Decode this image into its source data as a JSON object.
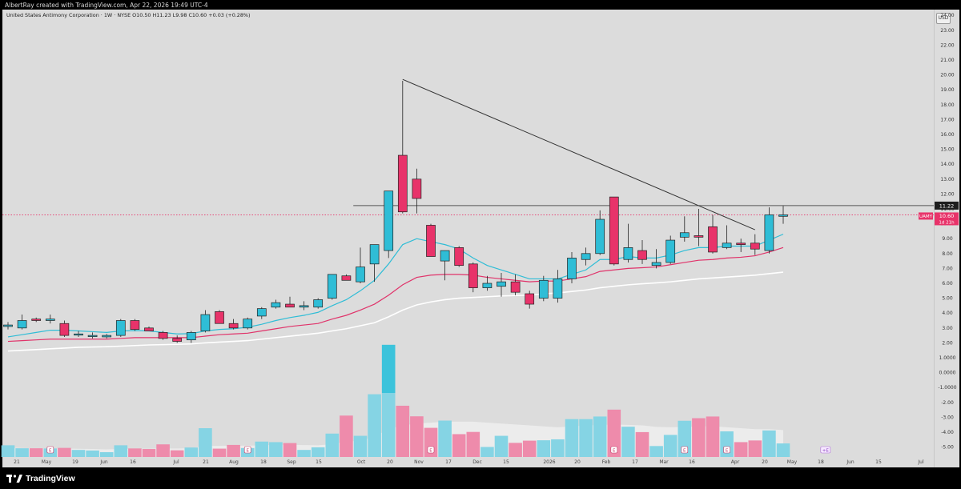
{
  "credit": "AlbertRay created with TradingView.com, Apr 22, 2026 19:49 UTC-4",
  "symbol_title": "United States Antimony Corporation · 1W · NYSE  O10.50  H11.23  L9.98  C10.60  +0.03 (+0.28%)",
  "currency": "USD",
  "brand": "TradingView",
  "colors": {
    "up": "#2fbdd6",
    "down": "#e8336a",
    "ema_fast": "#2fbdd6",
    "ema_mid": "#e0336a",
    "ema_slow": "#ffffff",
    "trend": "#333333"
  },
  "chart_data": {
    "type": "candlestick",
    "interval": "1W",
    "price_ticks": [
      "24.00",
      "23.00",
      "22.00",
      "21.00",
      "20.00",
      "19.00",
      "18.00",
      "17.00",
      "16.00",
      "15.00",
      "14.00",
      "13.00",
      "12.00",
      "11.00",
      "10.00",
      "9.00",
      "8.00",
      "7.00",
      "6.00",
      "5.00",
      "4.00",
      "3.00",
      "2.00",
      "1.0000",
      "0.0000",
      "-1.0000",
      "-2.00",
      "-3.00",
      "-4.00",
      "-5.00"
    ],
    "x_ticks": [
      "21",
      "May",
      "19",
      "Jun",
      "16",
      "Jul",
      "21",
      "Aug",
      "18",
      "Sep",
      "15",
      "Oct",
      "20",
      "Nov",
      "17",
      "Dec",
      "15",
      "2026",
      "20",
      "Feb",
      "17",
      "Mar",
      "16",
      "Apr",
      "20",
      "May",
      "18",
      "Jun",
      "15",
      "Jul"
    ],
    "price_labels": {
      "high": "11.22",
      "last": "10.60",
      "countdown": "1d 21h",
      "ticker": "UAMY"
    },
    "candles": [
      {
        "o": 3.1,
        "h": 3.4,
        "l": 2.9,
        "c": 3.2
      },
      {
        "o": 3.0,
        "h": 3.9,
        "l": 2.9,
        "c": 3.5
      },
      {
        "o": 3.6,
        "h": 3.7,
        "l": 3.4,
        "c": 3.5
      },
      {
        "o": 3.5,
        "h": 3.9,
        "l": 3.3,
        "c": 3.6
      },
      {
        "o": 3.3,
        "h": 3.5,
        "l": 2.4,
        "c": 2.5
      },
      {
        "o": 2.6,
        "h": 2.8,
        "l": 2.4,
        "c": 2.6
      },
      {
        "o": 2.5,
        "h": 2.7,
        "l": 2.3,
        "c": 2.5
      },
      {
        "o": 2.4,
        "h": 2.6,
        "l": 2.3,
        "c": 2.5
      },
      {
        "o": 2.5,
        "h": 3.6,
        "l": 2.4,
        "c": 3.5
      },
      {
        "o": 3.5,
        "h": 3.6,
        "l": 2.8,
        "c": 2.9
      },
      {
        "o": 3.0,
        "h": 3.1,
        "l": 2.8,
        "c": 2.8
      },
      {
        "o": 2.7,
        "h": 2.8,
        "l": 2.2,
        "c": 2.3
      },
      {
        "o": 2.3,
        "h": 2.5,
        "l": 2.0,
        "c": 2.1
      },
      {
        "o": 2.2,
        "h": 2.8,
        "l": 2.0,
        "c": 2.7
      },
      {
        "o": 2.8,
        "h": 4.2,
        "l": 2.7,
        "c": 3.9
      },
      {
        "o": 4.1,
        "h": 4.2,
        "l": 3.3,
        "c": 3.3
      },
      {
        "o": 3.3,
        "h": 3.6,
        "l": 2.9,
        "c": 3.0
      },
      {
        "o": 3.0,
        "h": 3.7,
        "l": 2.9,
        "c": 3.6
      },
      {
        "o": 3.8,
        "h": 4.4,
        "l": 3.6,
        "c": 4.3
      },
      {
        "o": 4.4,
        "h": 4.9,
        "l": 4.3,
        "c": 4.7
      },
      {
        "o": 4.6,
        "h": 5.1,
        "l": 4.5,
        "c": 4.4
      },
      {
        "o": 4.4,
        "h": 4.8,
        "l": 4.2,
        "c": 4.5
      },
      {
        "o": 4.4,
        "h": 5.0,
        "l": 4.3,
        "c": 4.9
      },
      {
        "o": 5.0,
        "h": 6.6,
        "l": 4.9,
        "c": 6.6
      },
      {
        "o": 6.5,
        "h": 6.6,
        "l": 6.2,
        "c": 6.2
      },
      {
        "o": 6.1,
        "h": 8.4,
        "l": 6.0,
        "c": 7.1
      },
      {
        "o": 7.3,
        "h": 8.6,
        "l": 6.1,
        "c": 8.6
      },
      {
        "o": 8.2,
        "h": 12.2,
        "l": 7.7,
        "c": 12.2
      },
      {
        "o": 14.6,
        "h": 19.6,
        "l": 10.7,
        "c": 10.8
      },
      {
        "o": 13.0,
        "h": 13.7,
        "l": 10.7,
        "c": 11.7
      },
      {
        "o": 9.9,
        "h": 10.0,
        "l": 7.8,
        "c": 7.8
      },
      {
        "o": 7.5,
        "h": 8.2,
        "l": 6.2,
        "c": 8.2
      },
      {
        "o": 8.4,
        "h": 8.5,
        "l": 7.1,
        "c": 7.2
      },
      {
        "o": 7.3,
        "h": 7.4,
        "l": 5.4,
        "c": 5.7
      },
      {
        "o": 5.7,
        "h": 6.5,
        "l": 5.5,
        "c": 6.0
      },
      {
        "o": 5.8,
        "h": 6.7,
        "l": 5.1,
        "c": 6.1
      },
      {
        "o": 6.1,
        "h": 6.6,
        "l": 5.2,
        "c": 5.4
      },
      {
        "o": 5.3,
        "h": 5.5,
        "l": 4.3,
        "c": 4.6
      },
      {
        "o": 5.0,
        "h": 6.5,
        "l": 4.8,
        "c": 6.2
      },
      {
        "o": 5.0,
        "h": 6.9,
        "l": 4.7,
        "c": 6.3
      },
      {
        "o": 6.3,
        "h": 8.1,
        "l": 6.0,
        "c": 7.7
      },
      {
        "o": 7.6,
        "h": 8.4,
        "l": 7.2,
        "c": 8.0
      },
      {
        "o": 8.0,
        "h": 10.9,
        "l": 7.9,
        "c": 10.3
      },
      {
        "o": 11.8,
        "h": 11.8,
        "l": 7.2,
        "c": 7.3
      },
      {
        "o": 7.6,
        "h": 10.0,
        "l": 7.4,
        "c": 8.4
      },
      {
        "o": 8.2,
        "h": 8.9,
        "l": 7.3,
        "c": 7.6
      },
      {
        "o": 7.2,
        "h": 8.3,
        "l": 7.0,
        "c": 7.4
      },
      {
        "o": 7.4,
        "h": 9.2,
        "l": 7.3,
        "c": 8.9
      },
      {
        "o": 9.1,
        "h": 10.5,
        "l": 8.8,
        "c": 9.4
      },
      {
        "o": 9.2,
        "h": 11.0,
        "l": 8.5,
        "c": 9.1
      },
      {
        "o": 9.8,
        "h": 10.6,
        "l": 8.0,
        "c": 8.1
      },
      {
        "o": 8.4,
        "h": 9.9,
        "l": 8.3,
        "c": 8.7
      },
      {
        "o": 8.7,
        "h": 9.0,
        "l": 8.1,
        "c": 8.6
      },
      {
        "o": 8.7,
        "h": 9.3,
        "l": 7.9,
        "c": 8.3
      },
      {
        "o": 8.2,
        "h": 11.1,
        "l": 8.0,
        "c": 10.6
      },
      {
        "o": 10.5,
        "h": 11.2,
        "l": 10.0,
        "c": 10.6
      }
    ],
    "volume": [
      0.63,
      0.47,
      0.47,
      0.46,
      0.49,
      0.38,
      0.35,
      0.26,
      0.63,
      0.46,
      0.43,
      0.68,
      0.36,
      0.51,
      1.55,
      0.45,
      0.65,
      0.48,
      0.83,
      0.8,
      0.75,
      0.38,
      0.52,
      1.26,
      2.23,
      1.14,
      3.38,
      6.04,
      2.76,
      2.19,
      1.57,
      1.96,
      1.23,
      1.35,
      0.54,
      1.14,
      0.76,
      0.88,
      0.9,
      0.95,
      2.04,
      2.04,
      2.18,
      2.55,
      1.63,
      1.34,
      0.59,
      1.19,
      1.95,
      2.09,
      2.18,
      1.38,
      0.8,
      0.89,
      1.43,
      0.73
    ],
    "volume_ma": [
      0.5,
      0.48,
      0.47,
      0.46,
      0.46,
      0.44,
      0.43,
      0.41,
      0.43,
      0.44,
      0.44,
      0.46,
      0.46,
      0.47,
      0.6,
      0.6,
      0.61,
      0.61,
      0.63,
      0.65,
      0.66,
      0.64,
      0.63,
      0.69,
      0.83,
      0.88,
      1.1,
      1.5,
      1.7,
      1.8,
      1.85,
      1.9,
      1.9,
      1.9,
      1.85,
      1.8,
      1.75,
      1.7,
      1.65,
      1.6,
      1.65,
      1.7,
      1.72,
      1.75,
      1.73,
      1.7,
      1.62,
      1.6,
      1.62,
      1.64,
      1.66,
      1.6,
      1.55,
      1.5,
      1.5,
      1.45
    ],
    "ema_fast": [
      2.4,
      2.55,
      2.7,
      2.85,
      2.85,
      2.8,
      2.75,
      2.7,
      2.8,
      2.82,
      2.8,
      2.7,
      2.6,
      2.62,
      2.8,
      2.9,
      2.95,
      3.05,
      3.25,
      3.5,
      3.7,
      3.85,
      4.05,
      4.5,
      4.9,
      5.5,
      6.2,
      7.3,
      8.6,
      9.0,
      8.8,
      8.6,
      8.3,
      7.7,
      7.2,
      6.9,
      6.6,
      6.3,
      6.3,
      6.3,
      6.6,
      6.9,
      7.6,
      7.6,
      7.8,
      7.7,
      7.7,
      7.9,
      8.2,
      8.4,
      8.4,
      8.5,
      8.5,
      8.5,
      8.9,
      9.3
    ],
    "ema_mid": [
      2.1,
      2.15,
      2.2,
      2.25,
      2.25,
      2.25,
      2.25,
      2.25,
      2.3,
      2.35,
      2.35,
      2.35,
      2.35,
      2.35,
      2.45,
      2.55,
      2.6,
      2.65,
      2.8,
      2.95,
      3.1,
      3.2,
      3.3,
      3.6,
      3.85,
      4.2,
      4.6,
      5.2,
      5.9,
      6.4,
      6.55,
      6.6,
      6.6,
      6.55,
      6.4,
      6.3,
      6.2,
      6.1,
      6.15,
      6.15,
      6.3,
      6.45,
      6.8,
      6.9,
      7.0,
      7.05,
      7.1,
      7.25,
      7.4,
      7.55,
      7.6,
      7.7,
      7.75,
      7.85,
      8.1,
      8.4
    ],
    "ema_slow": [
      1.45,
      1.5,
      1.55,
      1.6,
      1.65,
      1.7,
      1.72,
      1.74,
      1.78,
      1.82,
      1.86,
      1.88,
      1.9,
      1.93,
      2.0,
      2.05,
      2.1,
      2.15,
      2.25,
      2.35,
      2.45,
      2.55,
      2.65,
      2.8,
      2.95,
      3.15,
      3.35,
      3.75,
      4.2,
      4.55,
      4.75,
      4.9,
      5.0,
      5.05,
      5.1,
      5.15,
      5.18,
      5.2,
      5.3,
      5.35,
      5.45,
      5.55,
      5.7,
      5.8,
      5.9,
      5.97,
      6.03,
      6.1,
      6.2,
      6.3,
      6.36,
      6.42,
      6.48,
      6.55,
      6.65,
      6.75
    ],
    "trendline": {
      "from": [
        28,
        19.7
      ],
      "to": [
        53,
        9.6
      ]
    },
    "horizontal_level": 11.22,
    "earnings_marks_at": [
      3,
      17,
      30,
      43,
      48,
      51
    ],
    "earnings_mark_future_index": 58,
    "ylim": [
      -5.5,
      24.8
    ]
  }
}
